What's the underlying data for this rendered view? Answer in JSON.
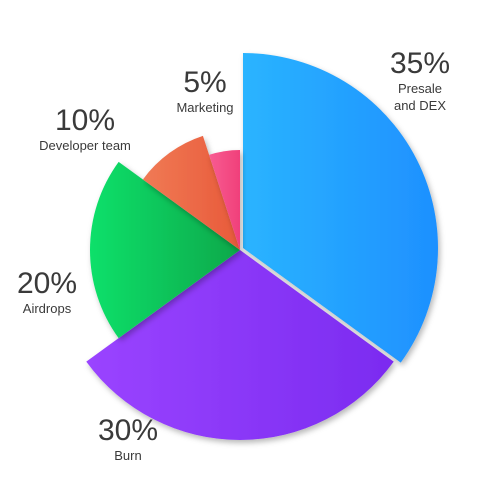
{
  "chart_data": {
    "type": "pie",
    "title": "",
    "slices": [
      {
        "name": "Presale and DEX",
        "value": 35,
        "label_pct": "35%",
        "label_lines": [
          "Presale",
          "and DEX"
        ],
        "color": "#1e90ff",
        "color_light": "#2ab4ff"
      },
      {
        "name": "Burn",
        "value": 30,
        "label_pct": "30%",
        "label_lines": [
          "Burn"
        ],
        "color": "#7b2bf0",
        "color_light": "#9a44ff"
      },
      {
        "name": "Airdrops",
        "value": 20,
        "label_pct": "20%",
        "label_lines": [
          "Airdrops"
        ],
        "color": "#0aa84a",
        "color_light": "#10e06a"
      },
      {
        "name": "Developer team",
        "value": 10,
        "label_pct": "10%",
        "label_lines": [
          "Developer team"
        ],
        "color": "#e85a3a",
        "color_light": "#f07a55"
      },
      {
        "name": "Marketing",
        "value": 5,
        "label_pct": "5%",
        "label_lines": [
          "Marketing"
        ],
        "color": "#f0407a",
        "color_light": "#f85c92"
      }
    ]
  }
}
